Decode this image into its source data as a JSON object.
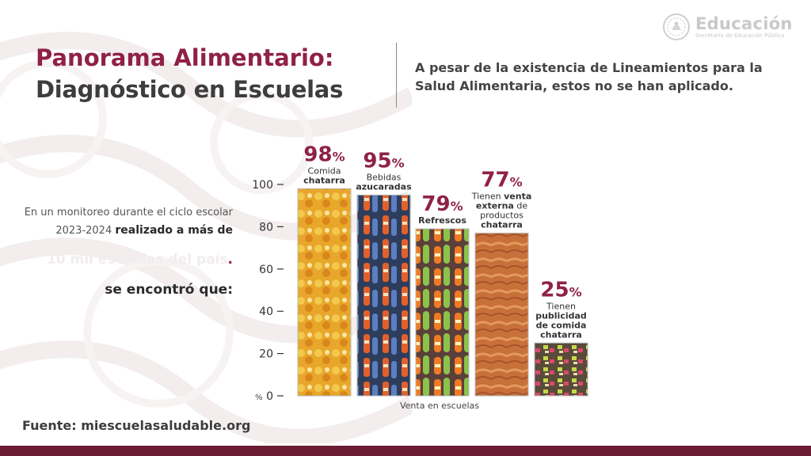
{
  "header": {
    "title_line1": "Panorama Alimentario:",
    "title_line2": "Diagnóstico en Escuelas",
    "subtitle": "A pesar de la existencia de Lineamientos para la Salud Alimentaria, estos no se han aplicado."
  },
  "logo": {
    "title": "Educación",
    "subtitle": "Secretaría de Educación Pública",
    "icon": "national-seal-icon"
  },
  "intro": {
    "line1": "En un monitoreo durante el ciclo escolar",
    "line2_normal": "2023-2024 ",
    "line2_bold": "realizado a más de",
    "line3_faded": "10 mil escuelas del país",
    "line3_dot": ".",
    "line4": "se encontró que:"
  },
  "source": "Fuente: miescuelasaludable.org",
  "colors": {
    "accent": "#8f2147",
    "dark_text": "#3d3d3d",
    "bottom_bar": "#691c32"
  },
  "chart_data": {
    "type": "bar",
    "xlabel": "Venta en escuelas",
    "ylabel": "%",
    "ylim": [
      0,
      100
    ],
    "yticks": [
      0,
      20,
      40,
      60,
      80,
      100
    ],
    "grid": false,
    "categories": [
      "Comida chatarra",
      "Bebidas azucaradas",
      "Refrescos",
      "Tienen venta externa de productos chatarra",
      "Tienen publicidad de comida chatarra"
    ],
    "values": [
      98,
      95,
      79,
      77,
      25
    ],
    "bar_fill": "photos",
    "annotations": [
      {
        "value": "98",
        "unit": "%",
        "lines": [
          [
            "Comida",
            false
          ],
          [
            "chatarra",
            true
          ]
        ]
      },
      {
        "value": "95",
        "unit": "%",
        "lines": [
          [
            "Bebidas",
            false
          ],
          [
            "azucaradas",
            true
          ]
        ]
      },
      {
        "value": "79",
        "unit": "%",
        "lines": [
          [
            "Refrescos",
            true
          ]
        ]
      },
      {
        "value": "77",
        "unit": "%",
        "lines": [
          [
            "Tienen ",
            false,
            "venta",
            true
          ],
          [
            "externa",
            true,
            " de",
            false
          ],
          [
            "productos",
            false
          ],
          [
            "chatarra",
            true
          ]
        ]
      },
      {
        "value": "25",
        "unit": "%",
        "lines": [
          [
            "Tienen",
            false
          ],
          [
            "publicidad",
            true
          ],
          [
            "de comida",
            true
          ],
          [
            "chatarra",
            true
          ]
        ]
      }
    ]
  }
}
